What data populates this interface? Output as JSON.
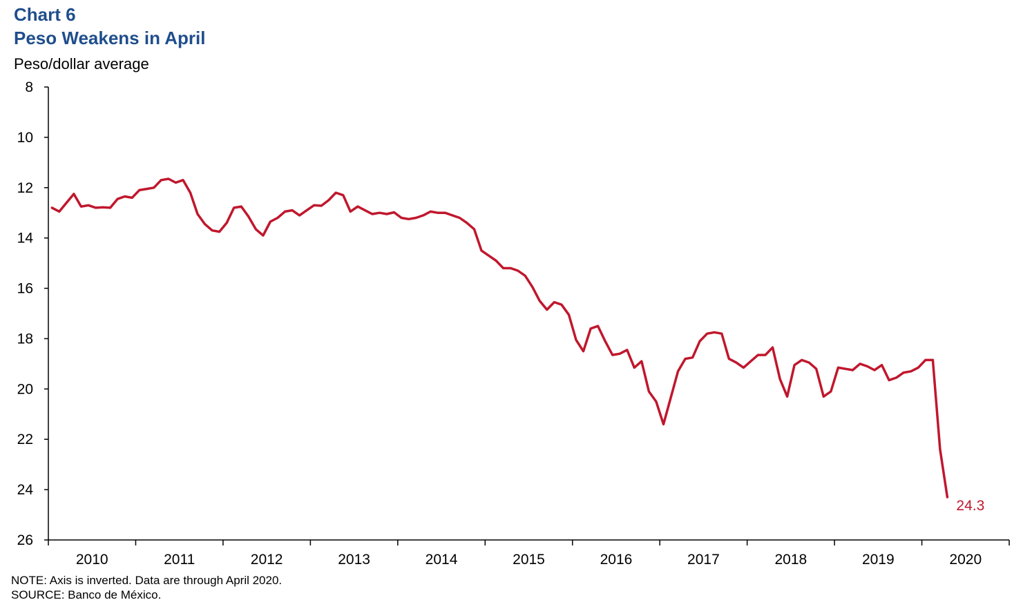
{
  "chart_number": "Chart 6",
  "title": "Peso Weakens in April",
  "unit_label": "Peso/dollar average",
  "note": "NOTE: Axis is inverted. Data are through April 2020.",
  "source": "SOURCE: Banco de México.",
  "colors": {
    "title": "#1f4e8c",
    "line": "#c0172d",
    "axis": "#000000"
  },
  "chart_data": {
    "type": "line",
    "title": "Peso Weakens in April",
    "ylabel": "Peso/dollar average",
    "xlabel": "",
    "y_inverted": true,
    "ylim": [
      8,
      26
    ],
    "y_ticks": [
      8,
      10,
      12,
      14,
      16,
      18,
      20,
      22,
      24,
      26
    ],
    "x_tick_labels": [
      "2010",
      "2011",
      "2012",
      "2013",
      "2014",
      "2015",
      "2016",
      "2017",
      "2018",
      "2019",
      "2020"
    ],
    "grid": false,
    "legend": "none",
    "end_label": "24.3",
    "series": [
      {
        "start": "2010-01",
        "frequency": "monthly",
        "values": [
          12.8,
          12.95,
          12.6,
          12.25,
          12.75,
          12.7,
          12.8,
          12.78,
          12.8,
          12.45,
          12.35,
          12.4,
          12.1,
          12.05,
          12.0,
          11.7,
          11.65,
          11.8,
          11.7,
          12.2,
          13.05,
          13.45,
          13.7,
          13.75,
          13.4,
          12.8,
          12.75,
          13.15,
          13.65,
          13.9,
          13.35,
          13.2,
          12.95,
          12.9,
          13.1,
          12.9,
          12.7,
          12.72,
          12.5,
          12.2,
          12.3,
          12.95,
          12.75,
          12.9,
          13.05,
          13.0,
          13.05,
          12.98,
          13.2,
          13.25,
          13.2,
          13.1,
          12.95,
          13.0,
          13.0,
          13.1,
          13.2,
          13.4,
          13.65,
          14.5,
          14.7,
          14.9,
          15.2,
          15.2,
          15.3,
          15.5,
          15.95,
          16.5,
          16.85,
          16.55,
          16.65,
          17.05,
          18.05,
          18.5,
          17.6,
          17.5,
          18.1,
          18.65,
          18.6,
          18.45,
          19.15,
          18.9,
          20.1,
          20.5,
          21.4,
          20.35,
          19.3,
          18.8,
          18.75,
          18.1,
          17.8,
          17.75,
          17.8,
          18.8,
          18.95,
          19.15,
          18.9,
          18.65,
          18.65,
          18.35,
          19.6,
          20.3,
          19.05,
          18.85,
          18.95,
          19.2,
          20.3,
          20.1,
          19.15,
          19.2,
          19.25,
          19.0,
          19.1,
          19.25,
          19.05,
          19.65,
          19.55,
          19.35,
          19.3,
          19.15,
          18.85,
          18.85,
          22.4,
          24.3
        ]
      }
    ]
  }
}
